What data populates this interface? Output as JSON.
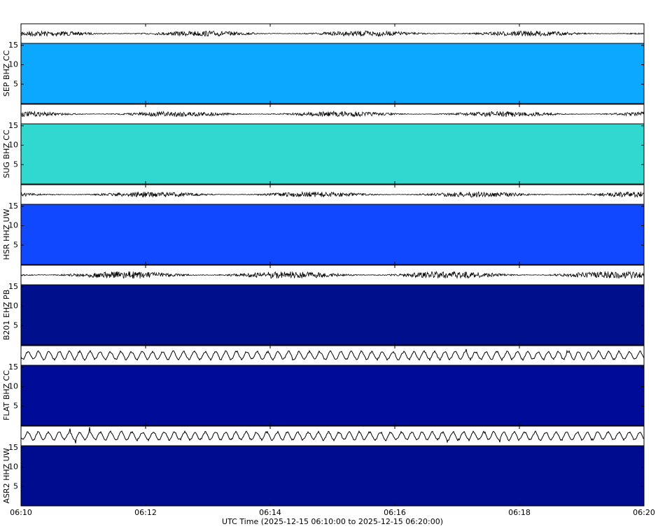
{
  "chart_data": {
    "type": "spectrogram",
    "xlabel": "UTC Time (2025-12-15 06:10:00 to 2025-12-15 06:20:00)",
    "xlim": [
      0,
      10
    ],
    "xticks": [
      {
        "value": 0,
        "label": "06:10"
      },
      {
        "value": 2,
        "label": "06:12"
      },
      {
        "value": 4,
        "label": "06:14"
      },
      {
        "value": 6,
        "label": "06:16"
      },
      {
        "value": 8,
        "label": "06:18"
      },
      {
        "value": 10,
        "label": "06:20"
      }
    ],
    "ylim": [
      0,
      15.5
    ],
    "yticks": [
      5,
      10,
      15
    ],
    "panels": [
      {
        "name": "SEP BHZ CC",
        "colors": [
          "#0aa8ff",
          "#3cffc0"
        ]
      },
      {
        "name": "SUG BHZ CC",
        "colors": [
          "#30d8d0",
          "#e8ff30"
        ]
      },
      {
        "name": "HSR HHZ UW",
        "colors": [
          "#1048ff",
          "#20d8ff"
        ]
      },
      {
        "name": "B201 EHZ PB",
        "colors": [
          "#00108c",
          "#0028c8"
        ]
      },
      {
        "name": "FLAT BHZ CC",
        "colors": [
          "#000c98",
          "#1060ff"
        ]
      },
      {
        "name": "ASR2 HHZ UW",
        "colors": [
          "#000c90",
          "#0850ff"
        ]
      }
    ]
  }
}
